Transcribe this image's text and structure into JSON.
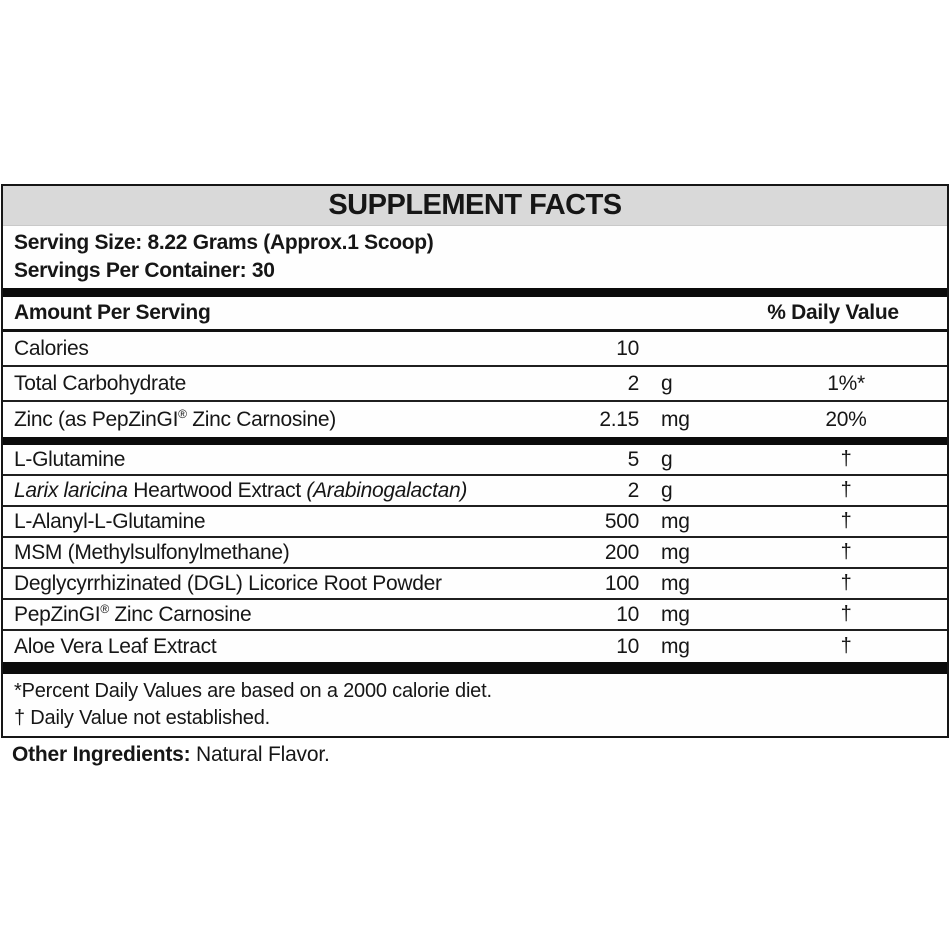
{
  "label": {
    "title": "SUPPLEMENT FACTS",
    "serving_size": "Serving Size: 8.22 Grams (Approx.1 Scoop)",
    "servings_per_container": "Servings Per Container: 30",
    "columns": {
      "amount_header": "Amount Per Serving",
      "dv_header": "% Daily Value"
    },
    "rows": [
      {
        "name": "Calories",
        "amount": "10",
        "unit": "",
        "dv": ""
      },
      {
        "name": "Total Carbohydrate",
        "amount": "2",
        "unit": "g",
        "dv": "1%*"
      },
      {
        "name_pre": "Zinc (as PepZinGI",
        "trademark": "®",
        "name_post": " Zinc Carnosine)",
        "amount": "2.15",
        "unit": "mg",
        "dv": "20%"
      },
      {
        "name": "L-Glutamine",
        "amount": "5",
        "unit": "g",
        "dv": "†"
      },
      {
        "name_italic_1": "Larix laricina",
        "name_mid": " Heartwood Extract ",
        "name_italic_2": "(Arabinogalactan)",
        "amount": "2",
        "unit": "g",
        "dv": "†"
      },
      {
        "name": "L-Alanyl-L-Glutamine",
        "amount": "500",
        "unit": "mg",
        "dv": "†"
      },
      {
        "name": "MSM (Methylsulfonylmethane)",
        "amount": "200",
        "unit": "mg",
        "dv": "†"
      },
      {
        "name": "Deglycyrrhizinated (DGL) Licorice Root Powder",
        "amount": "100",
        "unit": "mg",
        "dv": "†"
      },
      {
        "name_pre": "PepZinGI",
        "trademark": "®",
        "name_post": " Zinc Carnosine",
        "amount": "10",
        "unit": "mg",
        "dv": "†"
      },
      {
        "name": "Aloe Vera Leaf Extract",
        "amount": "10",
        "unit": "mg",
        "dv": "†"
      }
    ],
    "footnotes": [
      "*Percent Daily Values are based on a 2000 calorie diet.",
      "† Daily Value not established."
    ],
    "other_ingredients_label": "Other Ingredients:",
    "other_ingredients_value": " Natural Flavor."
  },
  "colors": {
    "header_band": "#d9d9d9",
    "separator_bar": "#0b0b0b",
    "border": "#161616",
    "text": "#161616",
    "background": "#ffffff"
  }
}
